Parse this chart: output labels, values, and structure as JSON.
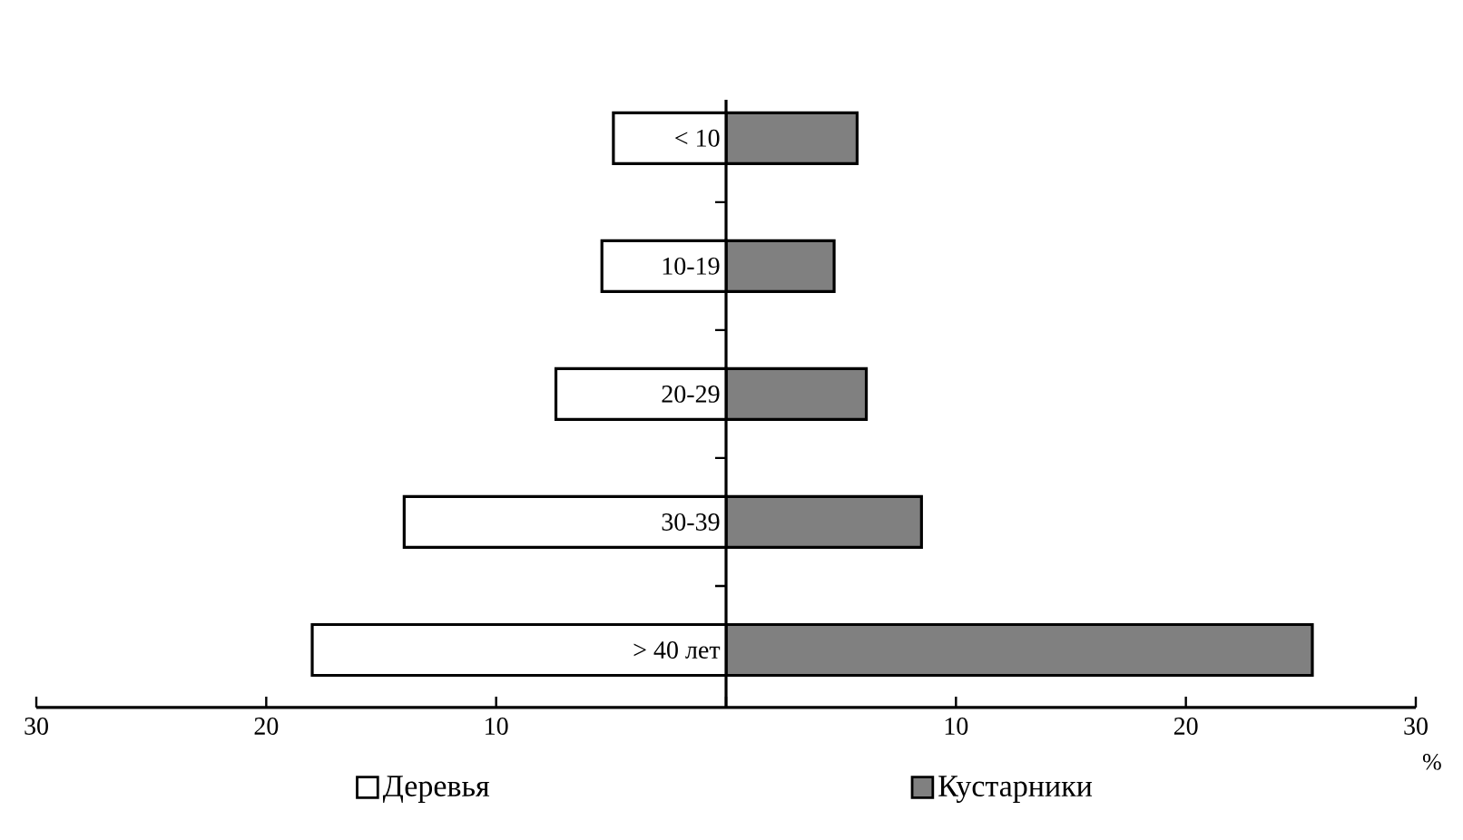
{
  "chart_data": {
    "type": "bar",
    "orientation": "horizontal",
    "categories": [
      "< 10",
      "10-19",
      "20-29",
      "30-39",
      "> 40 лет"
    ],
    "series": [
      {
        "name": "Деревья",
        "color": "#ffffff",
        "values": [
          -4.9,
          -5.4,
          -7.4,
          -14.0,
          -18.0
        ]
      },
      {
        "name": "Кустарники",
        "color": "#808080",
        "values": [
          5.7,
          4.7,
          6.1,
          8.5,
          25.5
        ]
      }
    ],
    "xlabel": "%",
    "xlim": [
      -30,
      30
    ],
    "xticks": [
      {
        "value": -30,
        "label": "30"
      },
      {
        "value": -20,
        "label": "20"
      },
      {
        "value": -10,
        "label": "10"
      },
      {
        "value": 0,
        "label": null
      },
      10,
      20,
      30
    ],
    "legend": "bottom",
    "stacked": true
  }
}
